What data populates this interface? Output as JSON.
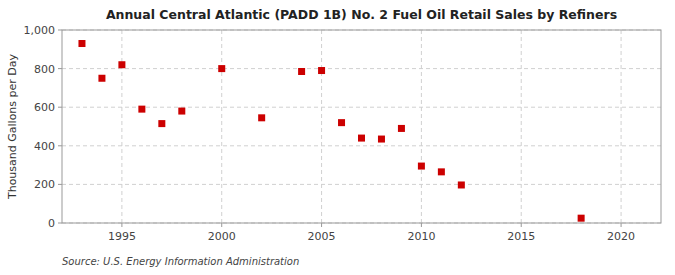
{
  "chart_data": {
    "type": "scatter",
    "title": "Annual Central Atlantic (PADD 1B) No. 2 Fuel Oil Retail Sales by Refiners",
    "y_label": "Thousand Gallons per Day",
    "annotations": [
      "Source: U.S. Energy Information Administration"
    ],
    "x": [
      1993,
      1994,
      1995,
      1996,
      1997,
      1998,
      2000,
      2002,
      2004,
      2005,
      2006,
      2007,
      2008,
      2009,
      2010,
      2011,
      2012,
      2018
    ],
    "values": [
      930,
      750,
      820,
      590,
      515,
      580,
      800,
      545,
      785,
      790,
      520,
      440,
      435,
      490,
      295,
      265,
      197,
      25
    ],
    "color": "#cc0000",
    "marker": "square",
    "xlim": [
      1992,
      2022
    ],
    "ylim": [
      0,
      1000
    ],
    "xticks": [
      1995,
      2000,
      2005,
      2010,
      2015,
      2020
    ],
    "yticks": [
      0,
      200,
      400,
      600,
      800,
      {
        "value": 1000,
        "label": "1,000"
      }
    ],
    "grid": true
  }
}
